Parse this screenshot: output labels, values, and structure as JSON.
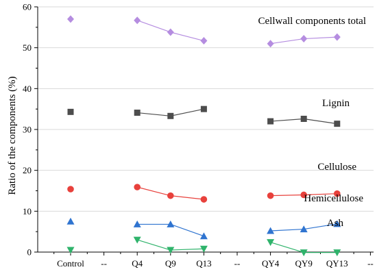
{
  "chart_data": {
    "type": "line",
    "ylabel": "Ratio of the components (%)",
    "xlabel": "",
    "ylim": [
      0,
      60
    ],
    "yticks": [
      0,
      10,
      20,
      30,
      40,
      50,
      60
    ],
    "grid": "horizontal",
    "categories": [
      "Control",
      "--",
      "Q4",
      "Q9",
      "Q13",
      "--",
      "QY4",
      "QY9",
      "QY13",
      "--"
    ],
    "series": [
      {
        "name": "Cellwall components total",
        "color": "#b58de0",
        "marker": "diamond",
        "values": [
          57.0,
          null,
          56.7,
          53.8,
          51.7,
          null,
          51.0,
          52.2,
          52.6,
          null
        ]
      },
      {
        "name": "Lignin",
        "color": "#4d4d4d",
        "marker": "square",
        "values": [
          34.3,
          null,
          34.1,
          33.3,
          35.0,
          null,
          32.0,
          32.6,
          31.4,
          null
        ]
      },
      {
        "name": "Cellulose",
        "color": "#e8413c",
        "marker": "circle",
        "values": [
          15.4,
          null,
          15.9,
          13.8,
          12.9,
          null,
          13.8,
          14.0,
          14.3,
          null
        ]
      },
      {
        "name": "Hemicellulose",
        "color": "#2f74d0",
        "marker": "triangle-up",
        "values": [
          7.5,
          null,
          6.8,
          6.8,
          3.9,
          null,
          5.2,
          5.6,
          6.9,
          null
        ]
      },
      {
        "name": "Ash",
        "color": "#2fb36b",
        "marker": "triangle-down",
        "values": [
          0.5,
          null,
          3.0,
          0.5,
          0.8,
          null,
          2.4,
          -0.1,
          -0.1,
          null
        ]
      }
    ]
  }
}
